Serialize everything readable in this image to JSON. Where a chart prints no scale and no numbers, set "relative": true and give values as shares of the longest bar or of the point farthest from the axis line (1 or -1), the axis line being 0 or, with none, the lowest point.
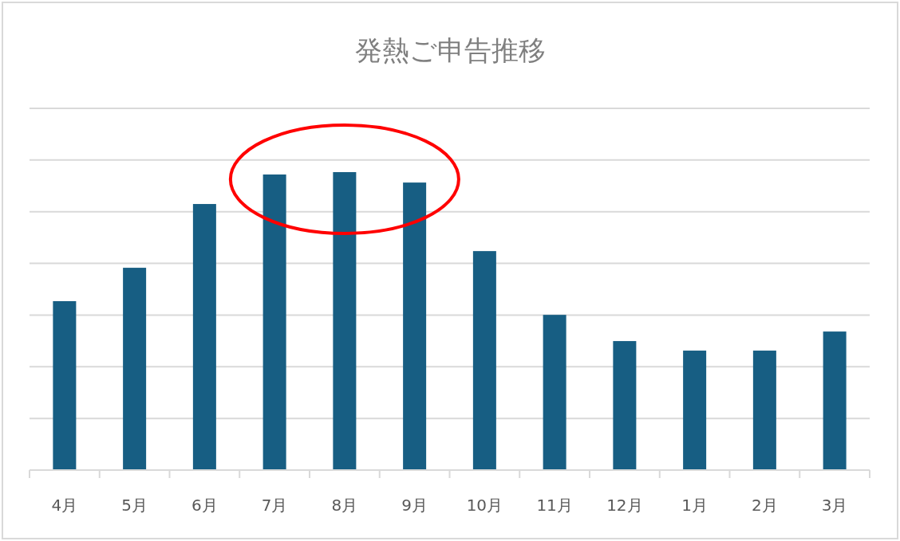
{
  "chart_data": {
    "type": "bar",
    "title": "発熱ご申告推移",
    "categories": [
      "4月",
      "5月",
      "6月",
      "7月",
      "8月",
      "9月",
      "10月",
      "11月",
      "12月",
      "1月",
      "2月",
      "3月"
    ],
    "values": [
      0.567,
      0.679,
      0.893,
      0.992,
      1,
      0.965,
      0.735,
      0.521,
      0.433,
      0.401,
      0.401,
      0.465
    ],
    "color": "#175e83",
    "relative": true,
    "grid": "y"
  }
}
